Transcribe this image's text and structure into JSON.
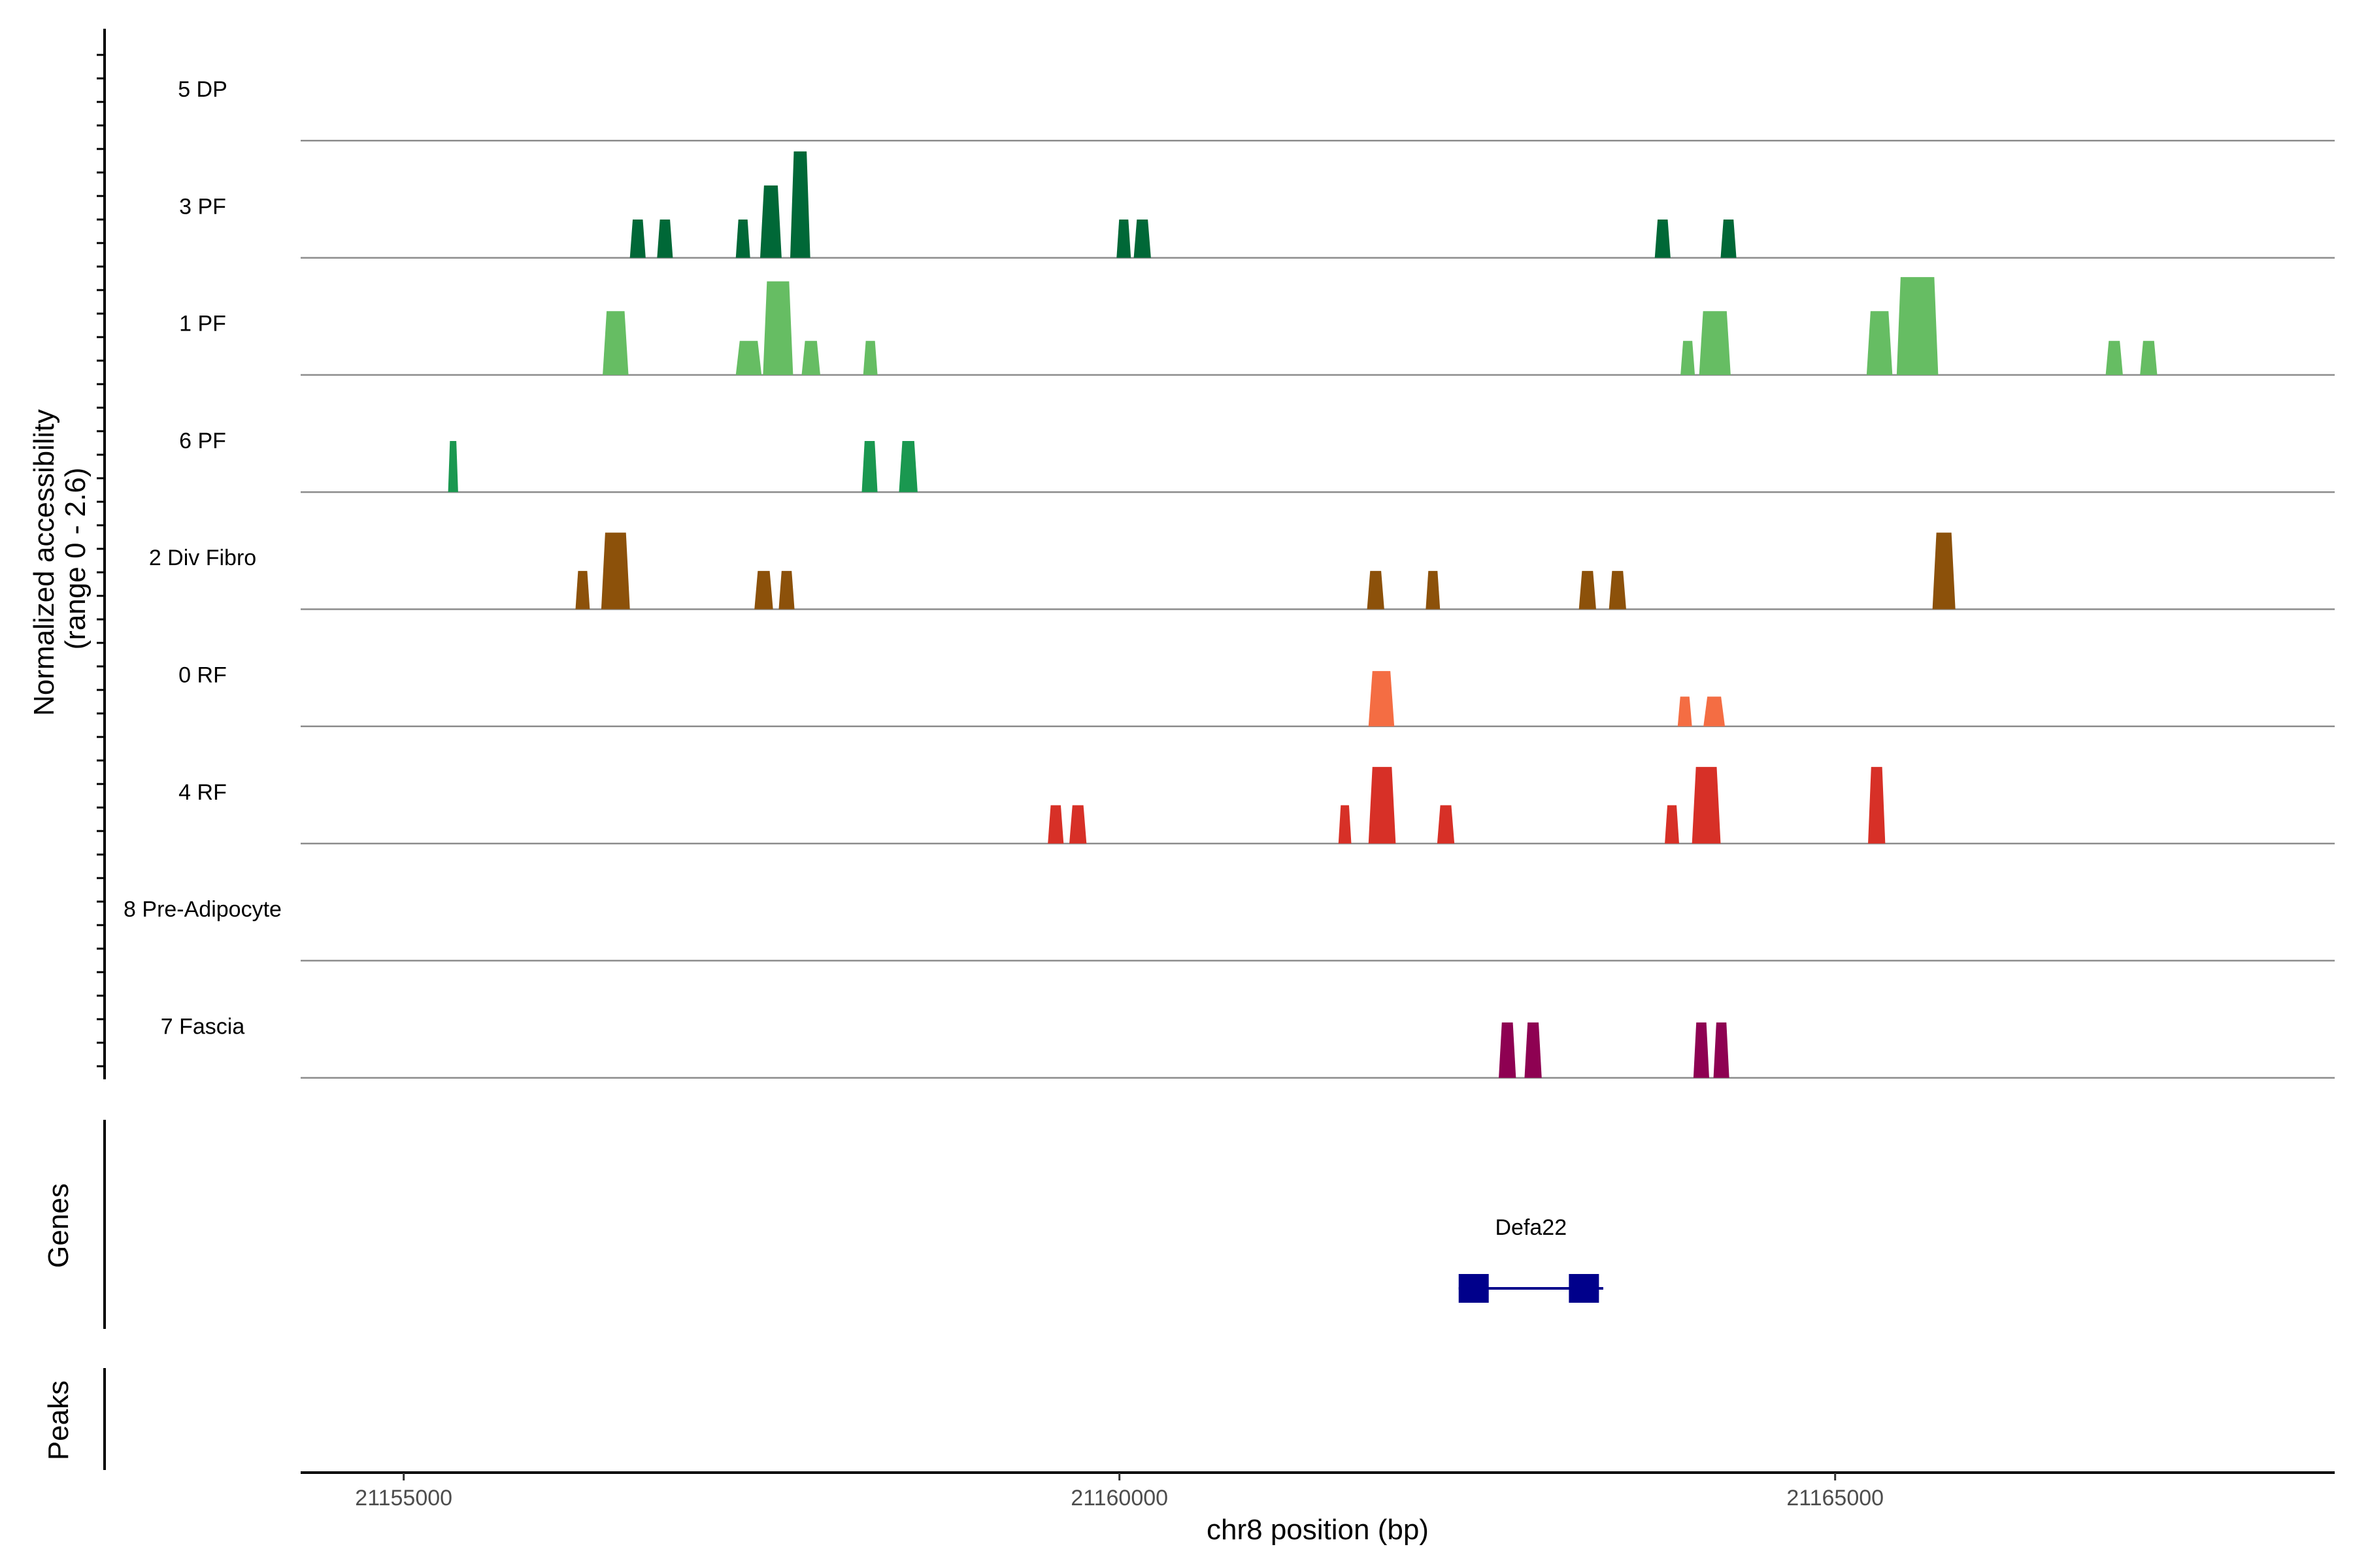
{
  "chart_data": {
    "type": "genome-coverage",
    "x": {
      "title": "chr8 position (bp)",
      "range": [
        21154280,
        21168490
      ],
      "ticks": [
        21155000,
        21160000,
        21165000
      ],
      "tick_labels": [
        "21155000",
        "21160000",
        "21165000"
      ]
    },
    "coverage_ylabel": [
      "Normalized accessibility",
      "(range 0 - 2.6)"
    ],
    "y_range": [
      0,
      2.6
    ],
    "tracks": [
      {
        "name": "5 DP",
        "color": "#006837",
        "peaks": []
      },
      {
        "name": "3 PF",
        "color": "#006837",
        "peaks": [
          {
            "start": 21156580,
            "end": 21156690,
            "height": 0.9
          },
          {
            "start": 21156770,
            "end": 21156880,
            "height": 0.9
          },
          {
            "start": 21157320,
            "end": 21157420,
            "height": 0.9
          },
          {
            "start": 21157490,
            "end": 21157640,
            "height": 1.7
          },
          {
            "start": 21157700,
            "end": 21157840,
            "height": 2.5
          },
          {
            "start": 21159980,
            "end": 21160080,
            "height": 0.9
          },
          {
            "start": 21160100,
            "end": 21160220,
            "height": 0.9
          },
          {
            "start": 21163740,
            "end": 21163850,
            "height": 0.9
          },
          {
            "start": 21164200,
            "end": 21164310,
            "height": 0.9
          }
        ]
      },
      {
        "name": "1 PF",
        "color": "#66bd63",
        "peaks": [
          {
            "start": 21156390,
            "end": 21156570,
            "height": 1.5
          },
          {
            "start": 21157320,
            "end": 21157500,
            "height": 0.8
          },
          {
            "start": 21157510,
            "end": 21157720,
            "height": 2.2
          },
          {
            "start": 21157780,
            "end": 21157910,
            "height": 0.8
          },
          {
            "start": 21158210,
            "end": 21158310,
            "height": 0.8
          },
          {
            "start": 21163920,
            "end": 21164020,
            "height": 0.8
          },
          {
            "start": 21164050,
            "end": 21164270,
            "height": 1.5
          },
          {
            "start": 21165220,
            "end": 21165400,
            "height": 1.5
          },
          {
            "start": 21165430,
            "end": 21165720,
            "height": 2.3
          },
          {
            "start": 21166890,
            "end": 21167010,
            "height": 0.8
          },
          {
            "start": 21167130,
            "end": 21167250,
            "height": 0.8
          }
        ]
      },
      {
        "name": "6 PF",
        "color": "#1a9850",
        "peaks": [
          {
            "start": 21155310,
            "end": 21155380,
            "height": 1.2
          },
          {
            "start": 21158200,
            "end": 21158310,
            "height": 1.2
          },
          {
            "start": 21158460,
            "end": 21158590,
            "height": 1.2
          }
        ]
      },
      {
        "name": "2 Div Fibro",
        "color": "#8c510a",
        "peaks": [
          {
            "start": 21156200,
            "end": 21156300,
            "height": 0.9
          },
          {
            "start": 21156380,
            "end": 21156580,
            "height": 1.8
          },
          {
            "start": 21157450,
            "end": 21157580,
            "height": 0.9
          },
          {
            "start": 21157620,
            "end": 21157730,
            "height": 0.9
          },
          {
            "start": 21161730,
            "end": 21161850,
            "height": 0.9
          },
          {
            "start": 21162140,
            "end": 21162240,
            "height": 0.9
          },
          {
            "start": 21163210,
            "end": 21163330,
            "height": 0.9
          },
          {
            "start": 21163420,
            "end": 21163540,
            "height": 0.9
          },
          {
            "start": 21165680,
            "end": 21165840,
            "height": 1.8
          }
        ]
      },
      {
        "name": "0 RF",
        "color": "#f46d43",
        "peaks": [
          {
            "start": 21161740,
            "end": 21161920,
            "height": 1.3
          },
          {
            "start": 21163900,
            "end": 21164000,
            "height": 0.7
          },
          {
            "start": 21164080,
            "end": 21164230,
            "height": 0.7
          }
        ]
      },
      {
        "name": "4 RF",
        "color": "#d73027",
        "peaks": [
          {
            "start": 21159500,
            "end": 21159610,
            "height": 0.9
          },
          {
            "start": 21159650,
            "end": 21159770,
            "height": 0.9
          },
          {
            "start": 21161530,
            "end": 21161620,
            "height": 0.9
          },
          {
            "start": 21161740,
            "end": 21161930,
            "height": 1.8
          },
          {
            "start": 21162220,
            "end": 21162340,
            "height": 0.9
          },
          {
            "start": 21163810,
            "end": 21163910,
            "height": 0.9
          },
          {
            "start": 21164000,
            "end": 21164200,
            "height": 1.8
          },
          {
            "start": 21165230,
            "end": 21165350,
            "height": 1.8
          }
        ]
      },
      {
        "name": "8 Pre-Adipocyte",
        "color": "#3288bd",
        "peaks": []
      },
      {
        "name": "7 Fascia",
        "color": "#8e0152",
        "peaks": [
          {
            "start": 21162650,
            "end": 21162770,
            "height": 1.3
          },
          {
            "start": 21162830,
            "end": 21162950,
            "height": 1.3
          },
          {
            "start": 21164010,
            "end": 21164120,
            "height": 1.3
          },
          {
            "start": 21164150,
            "end": 21164260,
            "height": 1.3
          }
        ]
      }
    ],
    "genes_panel": {
      "title": "Genes",
      "genes": [
        {
          "name": "Defa22",
          "color": "#00008b",
          "exons": [
            [
              21162370,
              21162580
            ],
            [
              21163140,
              21163350
            ]
          ],
          "span": [
            21162370,
            21163380
          ]
        }
      ]
    },
    "peaks_panel": {
      "title": "Peaks"
    }
  }
}
